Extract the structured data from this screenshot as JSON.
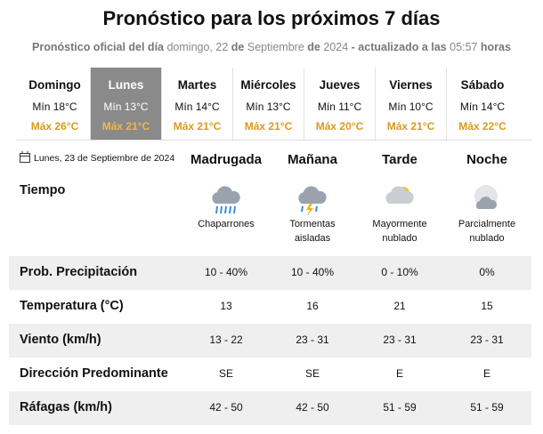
{
  "header": {
    "title": "Pronóstico para los próximos 7 días",
    "subtitle": [
      "Pronóstico oficial del día",
      "domingo, 22",
      "de",
      "Septiembre",
      "de",
      "2024",
      "- actualizado a las",
      "05:57",
      "horas"
    ]
  },
  "days": [
    {
      "name": "Domingo",
      "min": "Mín 18°C",
      "max": "Máx 26°C",
      "selected": false
    },
    {
      "name": "Lunes",
      "min": "Mín 13°C",
      "max": "Máx 21°C",
      "selected": true
    },
    {
      "name": "Martes",
      "min": "Mín 14°C",
      "max": "Máx 21°C",
      "selected": false
    },
    {
      "name": "Miércoles",
      "min": "Mín 13°C",
      "max": "Máx 21°C",
      "selected": false
    },
    {
      "name": "Jueves",
      "min": "Mín 11°C",
      "max": "Máx 20°C",
      "selected": false
    },
    {
      "name": "Viernes",
      "min": "Mín 10°C",
      "max": "Máx 21°C",
      "selected": false
    },
    {
      "name": "Sábado",
      "min": "Mín 14°C",
      "max": "Máx 22°C",
      "selected": false
    }
  ],
  "detail": {
    "date": "Lunes, 23 de Septiembre de 2024",
    "periods": [
      "Madrugada",
      "Mañana",
      "Tarde",
      "Noche"
    ],
    "weather_label": "Tiempo",
    "conditions": [
      "Chaparrones",
      "Tormentas aisladas",
      "Mayormente nublado",
      "Parcialmente nublado"
    ],
    "rows": [
      {
        "label": "Prob. Precipitación",
        "values": [
          "10 - 40%",
          "10 - 40%",
          "0 - 10%",
          "0%"
        ]
      },
      {
        "label": "Temperatura (°C)",
        "values": [
          "13",
          "16",
          "21",
          "15"
        ]
      },
      {
        "label": "Viento (km/h)",
        "values": [
          "13 - 22",
          "23 - 31",
          "23 - 31",
          "23 - 31"
        ]
      },
      {
        "label": "Dirección Predominante",
        "values": [
          "SE",
          "SE",
          "E",
          "E"
        ]
      },
      {
        "label": "Ráfagas (km/h)",
        "values": [
          "42 - 50",
          "42 - 50",
          "51 - 59",
          "51 - 59"
        ]
      }
    ]
  }
}
